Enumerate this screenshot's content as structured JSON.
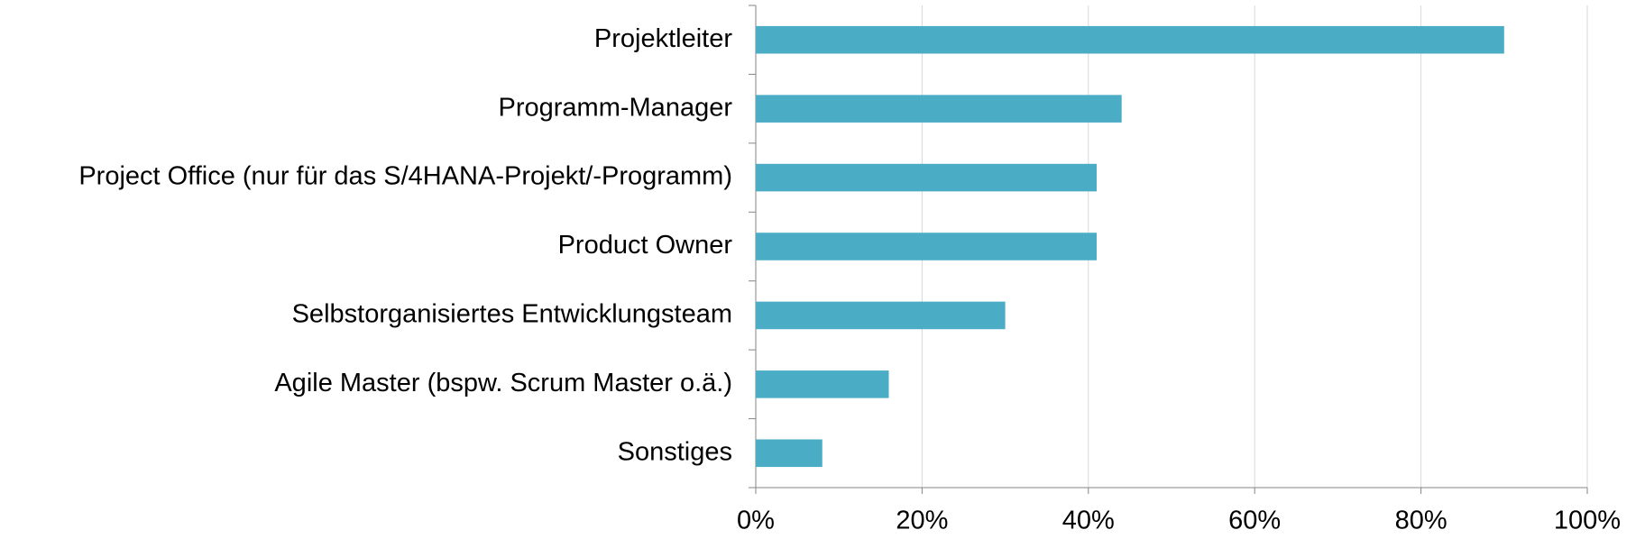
{
  "chart_data": {
    "type": "hbar",
    "categories": [
      "Projektleiter",
      "Programm-Manager",
      "Project Office (nur für das S/4HANA-Projekt/-Programm)",
      "Product Owner",
      "Selbstorganisiertes Entwicklungsteam",
      "Agile Master (bspw. Scrum Master o.ä.)",
      "Sonstiges"
    ],
    "values": [
      90,
      44,
      41,
      41,
      30,
      16,
      8
    ],
    "color": "#4bacc6",
    "xlim": [
      0,
      100
    ],
    "xticks": [
      {
        "value": 0,
        "label": "0%"
      },
      {
        "value": 20,
        "label": "20%"
      },
      {
        "value": 40,
        "label": "40%"
      },
      {
        "value": 60,
        "label": "60%"
      },
      {
        "value": 80,
        "label": "80%"
      },
      {
        "value": 100,
        "label": "100%"
      }
    ],
    "grid": true
  }
}
